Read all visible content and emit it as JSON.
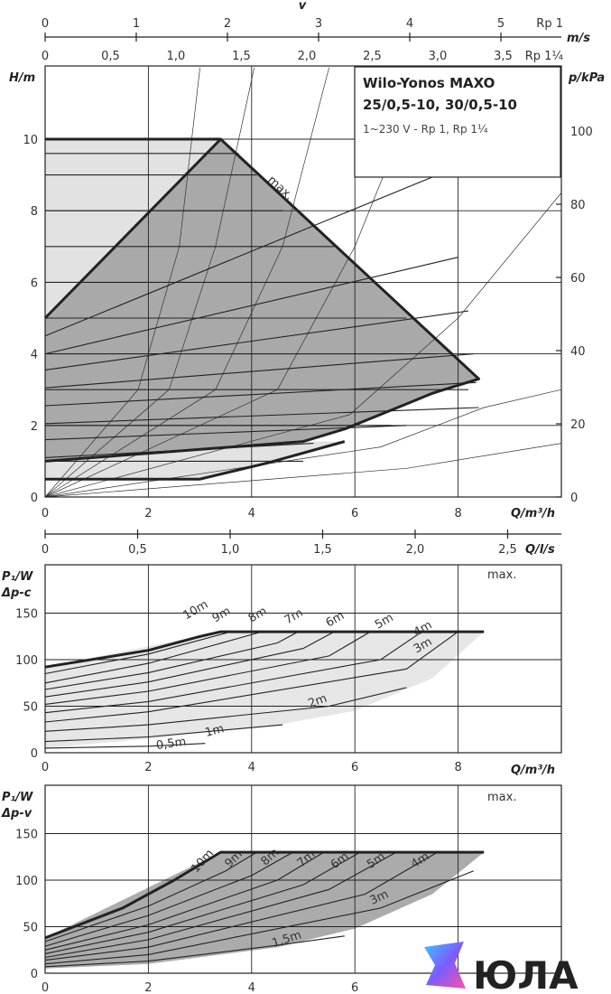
{
  "chart_data": [
    {
      "type": "line",
      "name": "H-Q",
      "title": "Wilo-Yonos MAXO",
      "subtitle": "25/0,5-10, 30/0,5-10",
      "note": "1~230 V - Rp 1, Rp 1¼",
      "xlabel": "Q/m³/h",
      "ylabel": "H/m",
      "y2label": "p/kPa",
      "xlim": [
        0,
        10
      ],
      "ylim": [
        0,
        12
      ],
      "x_ticks": [
        "0",
        "2",
        "4",
        "6",
        "8"
      ],
      "y_ticks": [
        "0",
        "2",
        "4",
        "6",
        "8",
        "10"
      ],
      "y2_ticks": [
        "0",
        "20",
        "40",
        "60",
        "80",
        "100"
      ],
      "top_axis": {
        "label": "v",
        "unit": "m/s",
        "rp1_label": "Rp 1",
        "rp1_ticks": [
          "0",
          "1",
          "2",
          "3",
          "4",
          "5"
        ],
        "rp114_label": "Rp 1¼",
        "rp114_ticks": [
          "0",
          "0,5",
          "1,0",
          "1,5",
          "2,0",
          "2,5",
          "3,0",
          "3,5"
        ]
      },
      "max_label": "max.",
      "envelope": [
        [
          0,
          5
        ],
        [
          3.4,
          10
        ],
        [
          8.4,
          3.3
        ],
        [
          7.0,
          2.6
        ],
        [
          5.8,
          1.9
        ],
        [
          5.0,
          1.55
        ],
        [
          0,
          1.0
        ]
      ],
      "light_region": [
        [
          0,
          10
        ],
        [
          3.4,
          10
        ],
        [
          0,
          5
        ]
      ],
      "max_curve": [
        [
          0,
          10
        ],
        [
          3.4,
          10
        ],
        [
          8.4,
          3.3
        ],
        [
          7.5,
          2.9
        ],
        [
          7.0,
          2.6
        ],
        [
          5.8,
          1.9
        ],
        [
          5.0,
          1.55
        ],
        [
          0,
          1.0
        ]
      ],
      "min_curve": [
        [
          0,
          0.5
        ],
        [
          3.0,
          0.5
        ],
        [
          4.3,
          0.95
        ],
        [
          5.8,
          1.55
        ]
      ],
      "dp_lines": [
        [
          [
            0,
            9.6
          ],
          [
            3.75,
            9.6
          ]
        ],
        [
          [
            0,
            9.0
          ],
          [
            4.1,
            9.0
          ]
        ],
        [
          [
            0,
            8.0
          ],
          [
            4.6,
            8.0
          ]
        ],
        [
          [
            0,
            7.0
          ],
          [
            5.6,
            7.0
          ]
        ],
        [
          [
            0,
            6.0
          ],
          [
            6.3,
            6.0
          ]
        ],
        [
          [
            0,
            5.0
          ],
          [
            7.0,
            5.0
          ]
        ],
        [
          [
            0,
            4.0
          ],
          [
            7.6,
            4.0
          ]
        ],
        [
          [
            0,
            3.0
          ],
          [
            8.2,
            3.0
          ]
        ],
        [
          [
            0,
            2.0
          ],
          [
            6.7,
            2.0
          ]
        ],
        [
          [
            0,
            1.0
          ],
          [
            5.0,
            1.0
          ]
        ]
      ],
      "dv_lines": [
        [
          [
            0,
            4.5
          ],
          [
            7.6,
            9.0
          ]
        ],
        [
          [
            0,
            4.0
          ],
          [
            8.0,
            6.7
          ]
        ],
        [
          [
            0,
            3.55
          ],
          [
            8.2,
            5.2
          ]
        ],
        [
          [
            0,
            3.05
          ],
          [
            8.3,
            4.0
          ]
        ],
        [
          [
            0,
            2.55
          ],
          [
            8.35,
            3.2
          ]
        ],
        [
          [
            0,
            2.05
          ],
          [
            8.4,
            2.5
          ]
        ],
        [
          [
            0,
            1.6
          ],
          [
            7.0,
            2.0
          ]
        ],
        [
          [
            0,
            1.1
          ],
          [
            5.2,
            1.5
          ]
        ]
      ],
      "system_curves": [
        [
          [
            0,
            0
          ],
          [
            1.8,
            3
          ],
          [
            2.6,
            7
          ],
          [
            3.0,
            12
          ]
        ],
        [
          [
            0,
            0
          ],
          [
            2.4,
            3
          ],
          [
            3.3,
            7
          ],
          [
            4.05,
            12
          ]
        ],
        [
          [
            0,
            0
          ],
          [
            3.3,
            3
          ],
          [
            4.6,
            7
          ],
          [
            5.5,
            12
          ]
        ],
        [
          [
            0,
            0
          ],
          [
            4.5,
            3
          ],
          [
            6.0,
            7
          ],
          [
            7.4,
            12
          ]
        ],
        [
          [
            0,
            0
          ],
          [
            5.9,
            2.3
          ],
          [
            8.0,
            5.0
          ],
          [
            10.0,
            8.5
          ]
        ],
        [
          [
            0,
            0
          ],
          [
            6.5,
            1.4
          ],
          [
            8.5,
            2.5
          ],
          [
            10.0,
            3.0
          ]
        ],
        [
          [
            0,
            0
          ],
          [
            7.0,
            0.8
          ],
          [
            10.0,
            1.5
          ]
        ]
      ]
    },
    {
      "type": "line",
      "name": "P1 Δp-c",
      "xlabel": "Q/m³/h",
      "x2label": "Q/l/s",
      "ylabel": "P₁/W",
      "ylabel2": "Δp-c",
      "xlim": [
        0,
        10
      ],
      "ylim": [
        0,
        185
      ],
      "x_ticks": [
        "0",
        "2",
        "4",
        "6",
        "8"
      ],
      "x2_ticks": [
        "0",
        "0,5",
        "1,0",
        "1,5",
        "2,0",
        "2,5"
      ],
      "y_ticks": [
        "0",
        "50",
        "100",
        "150"
      ],
      "max_label": "max.",
      "series": [
        {
          "name": "10m",
          "points": [
            [
              0,
              92
            ],
            [
              2,
              110
            ],
            [
              3,
              125
            ],
            [
              3.4,
              130
            ]
          ]
        },
        {
          "name": "9m",
          "points": [
            [
              0,
              85
            ],
            [
              2,
              106
            ],
            [
              3.6,
              130
            ]
          ]
        },
        {
          "name": "8m",
          "points": [
            [
              0,
              75
            ],
            [
              2,
              96
            ],
            [
              4.2,
              130
            ]
          ]
        },
        {
          "name": "7m",
          "points": [
            [
              0,
              68
            ],
            [
              2,
              86
            ],
            [
              4.5,
              118
            ],
            [
              4.9,
              130
            ]
          ]
        },
        {
          "name": "6m",
          "points": [
            [
              0,
              60
            ],
            [
              2,
              76
            ],
            [
              5.0,
              112
            ],
            [
              5.6,
              130
            ]
          ]
        },
        {
          "name": "5m",
          "points": [
            [
              0,
              52
            ],
            [
              2,
              66
            ],
            [
              5.5,
              104
            ],
            [
              6.3,
              130
            ]
          ]
        },
        {
          "name": "4m",
          "points": [
            [
              0,
              43
            ],
            [
              2,
              55
            ],
            [
              6.5,
              100
            ],
            [
              7.3,
              130
            ]
          ]
        },
        {
          "name": "3m",
          "points": [
            [
              0,
              33
            ],
            [
              2,
              44
            ],
            [
              7.0,
              90
            ],
            [
              8.0,
              130
            ]
          ]
        },
        {
          "name": "2m",
          "points": [
            [
              0,
              23
            ],
            [
              2,
              30
            ],
            [
              5.5,
              50
            ],
            [
              7.0,
              70
            ]
          ]
        },
        {
          "name": "1m",
          "points": [
            [
              0,
              12
            ],
            [
              2,
              17
            ],
            [
              4.6,
              30
            ]
          ]
        },
        {
          "name": "0,5m",
          "points": [
            [
              0,
              5
            ],
            [
              2,
              7
            ],
            [
              3.1,
              10
            ]
          ]
        }
      ],
      "max_curve": [
        [
          0,
          92
        ],
        [
          2,
          110
        ],
        [
          3,
          125
        ],
        [
          3.4,
          130
        ],
        [
          8.5,
          130
        ]
      ],
      "region": [
        [
          0,
          5
        ],
        [
          0,
          92
        ],
        [
          3.4,
          130
        ],
        [
          8.5,
          130
        ],
        [
          7.5,
          80
        ],
        [
          6.0,
          45
        ],
        [
          4.5,
          30
        ],
        [
          2.0,
          15
        ],
        [
          0,
          5
        ]
      ],
      "labels": [
        "10m",
        "9m",
        "8m",
        "7m",
        "6m",
        "5m",
        "4m",
        "3m",
        "2m",
        "1m",
        "0,5m"
      ]
    },
    {
      "type": "line",
      "name": "P1 Δp-v",
      "xlabel": "",
      "ylabel": "P₁/W",
      "ylabel2": "Δp-v",
      "xlim": [
        0,
        10
      ],
      "ylim": [
        0,
        185
      ],
      "x_ticks": [
        "0",
        "2",
        "4",
        "6"
      ],
      "y_ticks": [
        "0",
        "50",
        "100",
        "150"
      ],
      "max_label": "max.",
      "series": [
        {
          "name": "10m",
          "points": [
            [
              0,
              38
            ],
            [
              1.5,
              70
            ],
            [
              2.5,
              100
            ],
            [
              3.4,
              130
            ]
          ]
        },
        {
          "name": "9m",
          "points": [
            [
              0,
              34
            ],
            [
              2,
              72
            ],
            [
              3.5,
              110
            ],
            [
              4.1,
              130
            ]
          ]
        },
        {
          "name": "8m",
          "points": [
            [
              0,
              29
            ],
            [
              2,
              62
            ],
            [
              4,
              105
            ],
            [
              4.8,
              130
            ]
          ]
        },
        {
          "name": "7m",
          "points": [
            [
              0,
              25
            ],
            [
              2,
              52
            ],
            [
              4.5,
              100
            ],
            [
              5.4,
              130
            ]
          ]
        },
        {
          "name": "6m",
          "points": [
            [
              0,
              21
            ],
            [
              2,
              44
            ],
            [
              5,
              95
            ],
            [
              6.1,
              130
            ]
          ]
        },
        {
          "name": "5m",
          "points": [
            [
              0,
              17
            ],
            [
              2,
              36
            ],
            [
              5.5,
              90
            ],
            [
              6.8,
              130
            ]
          ]
        },
        {
          "name": "4m",
          "points": [
            [
              0,
              14
            ],
            [
              2,
              28
            ],
            [
              6.2,
              85
            ],
            [
              7.6,
              130
            ]
          ]
        },
        {
          "name": "3m",
          "points": [
            [
              0,
              10
            ],
            [
              2,
              20
            ],
            [
              6.5,
              70
            ],
            [
              8.3,
              110
            ]
          ]
        },
        {
          "name": "1,5m",
          "points": [
            [
              0,
              7
            ],
            [
              2,
              13
            ],
            [
              4.5,
              30
            ],
            [
              5.8,
              40
            ]
          ]
        }
      ],
      "max_curve": [
        [
          0,
          38
        ],
        [
          1.5,
          70
        ],
        [
          2.5,
          100
        ],
        [
          3.4,
          130
        ],
        [
          8.5,
          130
        ]
      ],
      "region": [
        [
          0,
          5
        ],
        [
          0,
          38
        ],
        [
          3.4,
          130
        ],
        [
          8.5,
          130
        ],
        [
          7.5,
          85
        ],
        [
          6.0,
          48
        ],
        [
          4.5,
          28
        ],
        [
          2.0,
          10
        ],
        [
          0,
          5
        ]
      ],
      "labels": [
        "10m",
        "9m",
        "8m",
        "7m",
        "6m",
        "5m",
        "4m",
        "3m",
        "1,5m"
      ]
    }
  ],
  "watermark": {
    "brand": "ЮЛА"
  }
}
